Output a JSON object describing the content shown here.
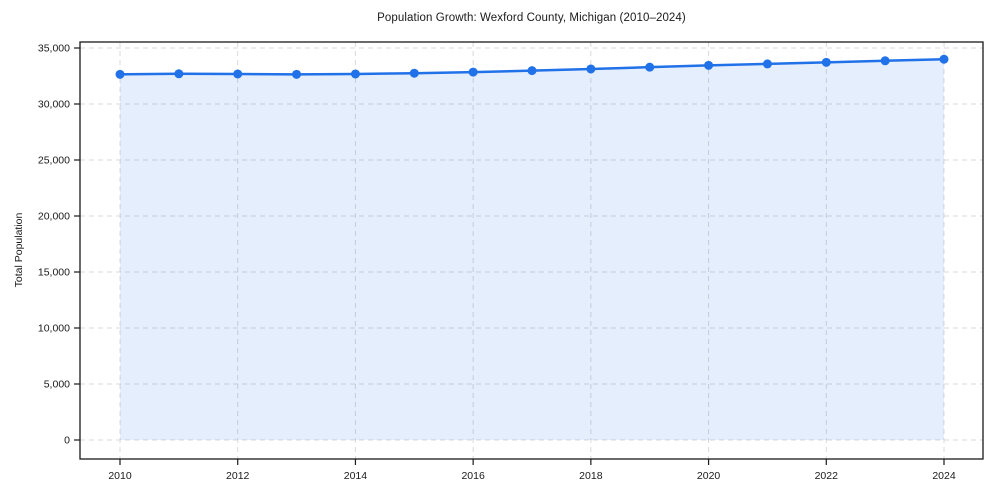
{
  "chart_data": {
    "type": "area",
    "title": "Population Growth: Wexford County, Michigan (2010–2024)",
    "xlabel": "",
    "ylabel": "Total Population",
    "x": [
      2010,
      2011,
      2012,
      2013,
      2014,
      2015,
      2016,
      2017,
      2018,
      2019,
      2020,
      2021,
      2022,
      2023,
      2024
    ],
    "series": [
      {
        "name": "Total Population",
        "values": [
          32650,
          32700,
          32680,
          32650,
          32680,
          32750,
          32850,
          32980,
          33130,
          33290,
          33450,
          33580,
          33720,
          33860,
          34000
        ]
      }
    ],
    "xticks": [
      2010,
      2012,
      2014,
      2016,
      2018,
      2020,
      2022,
      2024
    ],
    "xtick_labels": [
      "2010",
      "2012",
      "2014",
      "2016",
      "2018",
      "2020",
      "2022",
      "2024"
    ],
    "yticks": [
      0,
      5000,
      10000,
      15000,
      20000,
      25000,
      30000,
      35000
    ],
    "ytick_labels": [
      "0",
      "5,000",
      "10,000",
      "15,000",
      "20,000",
      "25,000",
      "30,000",
      "35,000"
    ],
    "xlim": [
      2009.32,
      2024.66
    ],
    "ylim": [
      -1700,
      35540
    ],
    "grid": true,
    "grid_style": "dashed",
    "legend": false,
    "colors": {
      "line": "#2171e8",
      "marker": "#2171e8",
      "fill": "#2171e8",
      "grid": "#d9d9d9",
      "spine": "#1a1a1a",
      "text": "#1a1a1a",
      "background": "#ffffff"
    },
    "fill_opacity": 0.12,
    "line_width": 2.5,
    "marker_radius": 4.5
  }
}
